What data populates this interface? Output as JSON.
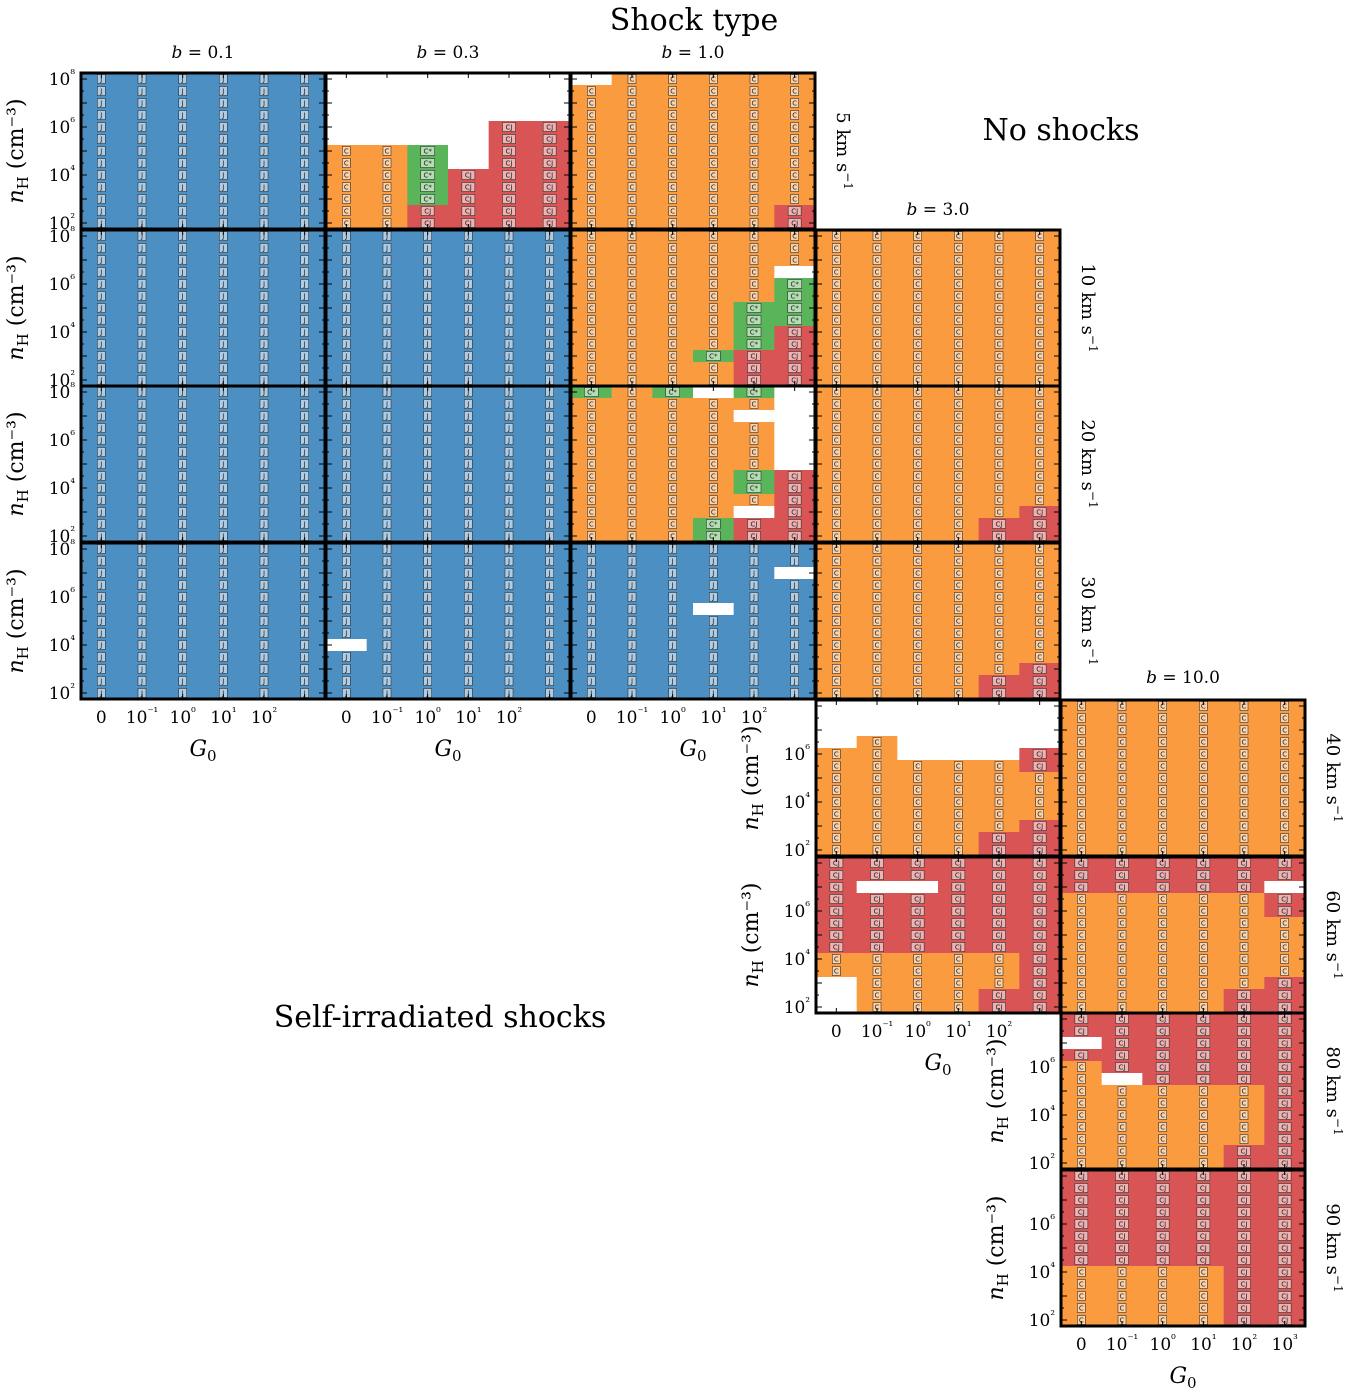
{
  "chart_data": {
    "type": "heatmap",
    "title": "Shock type",
    "annotations": {
      "no_shocks": "No shocks",
      "self_irradiated": "Self-irradiated shocks"
    },
    "xlabel": "G₀",
    "ylabel": "nH (cm⁻³)",
    "xtick_labels": [
      "0",
      "10⁻¹",
      "10⁰",
      "10¹",
      "10²",
      "10³"
    ],
    "ytick_labels": [
      "10²",
      "10⁴",
      "10⁶",
      "10⁸"
    ],
    "x_values_G0": [
      "0",
      "0.1",
      "1",
      "10",
      "100",
      "1000"
    ],
    "y_values_nH": [
      "1e2",
      "3e2",
      "1e3",
      "3e3",
      "1e4",
      "3e4",
      "1e5",
      "3e5",
      "1e6",
      "3e6",
      "1e7",
      "3e7",
      "1e8"
    ],
    "b_labels": [
      "b = 0.1",
      "b = 0.3",
      "b = 1.0",
      "b = 3.0",
      "b = 10.0"
    ],
    "velocity_labels": [
      "5 km s⁻¹",
      "10 km s⁻¹",
      "20 km s⁻¹",
      "30 km s⁻¹",
      "40 km s⁻¹",
      "60 km s⁻¹",
      "80 km s⁻¹",
      "90 km s⁻¹"
    ],
    "colors": {
      "J": "#4c8fc3",
      "C": "#fa9b3f",
      "C*": "#5ab45a",
      "CJ": "#d95454",
      "none": "#ffffff"
    },
    "grid_note": "rows listed from highest nH (top) to lowest nH (bottom); columns G0 = 0 .. 1000",
    "panels": [
      {
        "velocity": "5 km s⁻¹",
        "b": "b = 0.1",
        "rows": [
          "JJJJJJ",
          "JJJJJJ",
          "JJJJJJ",
          "JJJJJJ",
          "JJJJJJ",
          "JJJJJJ",
          "JJJJJJ",
          "JJJJJJ",
          "JJJJJJ",
          "JJJJJJ",
          "JJJJJJ",
          "JJJJJJ",
          "JJJJJJ"
        ]
      },
      {
        "velocity": "5 km s⁻¹",
        "b": "b = 0.3",
        "rows": [
          "......",
          "......",
          "......",
          "......",
          "....XX",
          "....XX",
          "CCS.XX",
          "CCS.XX",
          "CCSXXX",
          "CCSXXX",
          "CCSXXX",
          "CCXXXX",
          "CCXXXX"
        ]
      },
      {
        "velocity": "5 km s⁻¹",
        "b": "b = 1.0",
        "rows": [
          ".CCCCC",
          "CCCCCC",
          "CCCCCC",
          "CCCCCC",
          "CCCCCC",
          "CCCCCC",
          "CCCCCC",
          "CCCCCC",
          "CCCCCC",
          "CCCCCC",
          "CCCCCC",
          "CCCCCX",
          "CCCCCX"
        ]
      },
      {
        "velocity": "10 km s⁻¹",
        "b": "b = 0.1",
        "rows": [
          "JJJJJJ",
          "JJJJJJ",
          "JJJJJJ",
          "JJJJJJ",
          "JJJJJJ",
          "JJJJJJ",
          "JJJJJJ",
          "JJJJJJ",
          "JJJJJJ",
          "JJJJJJ",
          "JJJJJJ",
          "JJJJJJ",
          "JJJJJJ"
        ]
      },
      {
        "velocity": "10 km s⁻¹",
        "b": "b = 0.3",
        "rows": [
          "JJJJJJ",
          "JJJJJJ",
          "JJJJJJ",
          "JJJJJJ",
          "JJJJJJ",
          "JJJJJJ",
          "JJJJJJ",
          "JJJJJJ",
          "JJJJJJ",
          "JJJJJJ",
          "JJJJJJ",
          "JJJJJJ",
          "JJJJJJ"
        ]
      },
      {
        "velocity": "10 km s⁻¹",
        "b": "b = 1.0",
        "rows": [
          "CCCCCC",
          "CCCCCC",
          "CCCCCC",
          "CCCCC.",
          "CCCCCS",
          "CCCCCS",
          "CCCCSS",
          "CCCCSS",
          "CCCCSX",
          "CCCCSX",
          "CCCSXX",
          "CCCCXX",
          "CCCCXX"
        ]
      },
      {
        "velocity": "10 km s⁻¹",
        "b": "b = 3.0",
        "rows": [
          "CCCCCC",
          "CCCCCC",
          "CCCCCC",
          "CCCCCC",
          "CCCCCC",
          "CCCCCC",
          "CCCCCC",
          "CCCCCC",
          "CCCCCC",
          "CCCCCC",
          "CCCCCC",
          "CCCCCC",
          "CCCCCC"
        ]
      },
      {
        "velocity": "20 km s⁻¹",
        "b": "b = 0.1",
        "rows": [
          "JJJJJJ",
          "JJJJJJ",
          "JJJJJJ",
          "JJJJJJ",
          "JJJJJJ",
          "JJJJJJ",
          "JJJJJJ",
          "JJJJJJ",
          "JJJJJJ",
          "JJJJJJ",
          "JJJJJJ",
          "JJJJJJ",
          "JJJJJJ"
        ]
      },
      {
        "velocity": "20 km s⁻¹",
        "b": "b = 0.3",
        "rows": [
          "JJJJJJ",
          "JJJJJJ",
          "JJJJJJ",
          "JJJJJJ",
          "JJJJJJ",
          "JJJJJJ",
          "JJJJJJ",
          "JJJJJJ",
          "JJJJJJ",
          "JJJJJJ",
          "JJJJJJ",
          "JJJJJJ",
          "JJJJJJ"
        ]
      },
      {
        "velocity": "20 km s⁻¹",
        "b": "b = 1.0",
        "rows": [
          "SCS.S.",
          "CCCCC.",
          "CCCC..",
          "CCCCC.",
          "CCCCC.",
          "CCCCC.",
          "CCCCC.",
          "CCCCSX",
          "CCCCSX",
          "CCCCCX",
          "CCCC.X",
          "CCCSXX",
          "CCCSXX"
        ]
      },
      {
        "velocity": "20 km s⁻¹",
        "b": "b = 3.0",
        "rows": [
          "CCCCCC",
          "CCCCCC",
          "CCCCCC",
          "CCCCCC",
          "CCCCCC",
          "CCCCCC",
          "CCCCCC",
          "CCCCCC",
          "CCCCCC",
          "CCCCCC",
          "CCCCCX",
          "CCCCXX",
          "CCCCXX"
        ]
      },
      {
        "velocity": "30 km s⁻¹",
        "b": "b = 0.1",
        "rows": [
          "JJJJJJ",
          "JJJJJJ",
          "JJJJJJ",
          "JJJJJJ",
          "JJJJJJ",
          "JJJJJJ",
          "JJJJJJ",
          "JJJJJJ",
          "JJJJJJ",
          "JJJJJJ",
          "JJJJJJ",
          "JJJJJJ",
          "JJJJJJ"
        ]
      },
      {
        "velocity": "30 km s⁻¹",
        "b": "b = 0.3",
        "rows": [
          "JJJJJJ",
          "JJJJJJ",
          "JJJJJJ",
          "JJJJJJ",
          "JJJJJJ",
          "JJJJJJ",
          "JJJJJJ",
          "JJJJJJ",
          ".JJJJJ",
          "JJJJJJ",
          "JJJJJJ",
          "JJJJJJ",
          "JJJJJJ"
        ]
      },
      {
        "velocity": "30 km s⁻¹",
        "b": "b = 1.0",
        "rows": [
          "JJJJJJ",
          "JJJJJJ",
          "JJJJJ.",
          "JJJJJJ",
          "JJJJJJ",
          "JJJ.JJ",
          "JJJJJJ",
          "JJJJJJ",
          "JJJJJJ",
          "JJJJJJ",
          "JJJJJJ",
          "JJJJJJ",
          "JJJJJJ"
        ]
      },
      {
        "velocity": "30 km s⁻¹",
        "b": "b = 3.0",
        "rows": [
          "CCCCCC",
          "CCCCCC",
          "CCCCCC",
          "CCCCCC",
          "CCCCCC",
          "CCCCCC",
          "CCCCCC",
          "CCCCCC",
          "CCCCCC",
          "CCCCCC",
          "CCCCCX",
          "CCCCXX",
          "CCCCXX"
        ]
      },
      {
        "velocity": "40 km s⁻¹",
        "b": "b = 3.0",
        "rows": [
          "......",
          "......",
          "......",
          ".C....",
          "CC...X",
          "CCCCCX",
          "CCCCCC",
          "CCCCCC",
          "CCCCCC",
          "CCCCCC",
          "CCCCCX",
          "CCCCXX",
          "CCCCXX"
        ]
      },
      {
        "velocity": "40 km s⁻¹",
        "b": "b = 10.0",
        "rows": [
          "CCCCCC",
          "CCCCCC",
          "CCCCCC",
          "CCCCCC",
          "CCCCCC",
          "CCCCCC",
          "CCCCCC",
          "CCCCCC",
          "CCCCCC",
          "CCCCCC",
          "CCCCCC",
          "CCCCCC",
          "CCCCCC"
        ]
      },
      {
        "velocity": "60 km s⁻¹",
        "b": "b = 3.0",
        "rows": [
          "XXXXXX",
          "XXXXXX",
          "X..XXX",
          "XXXXXX",
          "XXXXXX",
          "XXXXXX",
          "XXXXXX",
          "XXXXXX",
          "CCCCCX",
          "CCCCCX",
          ".CCCCX",
          ".CCCXX",
          ".CCCXX"
        ]
      },
      {
        "velocity": "60 km s⁻¹",
        "b": "b = 10.0",
        "rows": [
          "XXXXXX",
          "XXXXXX",
          "XXXXX.",
          "CCCCCX",
          "CCCCCX",
          "CCCCCC",
          "CCCCCC",
          "CCCCCC",
          "CCCCCC",
          "CCCCCC",
          "CCCCCX",
          "CCCCXX",
          "CCCCXX"
        ]
      },
      {
        "velocity": "80 km s⁻¹",
        "b": "b = 10.0",
        "rows": [
          "XXXXXX",
          "XXXXXX",
          ".XXXXX",
          "XXXXXX",
          "CXXXXX",
          "C.XXXX",
          "CCCCCX",
          "CCCCCX",
          "CCCCCX",
          "CCCCCX",
          "CCCCCX",
          "CCCCXX",
          "CCCCXX"
        ]
      },
      {
        "velocity": "90 km s⁻¹",
        "b": "b = 10.0",
        "rows": [
          "XXXXXX",
          "XXXXXX",
          "XXXXXX",
          "XXXXXX",
          "XXXXXX",
          "XXXXXX",
          "XXXXXX",
          "XXXXXX",
          "CCCCXX",
          "CCCCXX",
          "CCCCXX",
          "CCCCXX",
          "CCCCXX"
        ]
      }
    ]
  }
}
